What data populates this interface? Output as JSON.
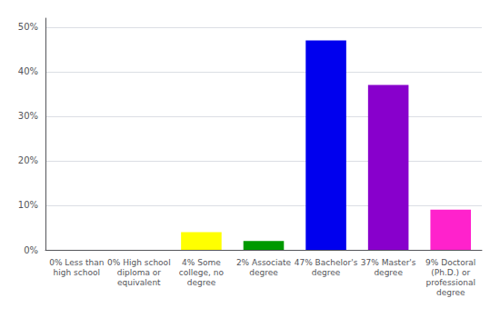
{
  "chart_data": {
    "type": "bar",
    "categories": [
      "0% Less than\nhigh school",
      "0% High school\ndiploma or\nequivalent",
      "4% Some\ncollege, no\ndegree",
      "2% Associate\ndegree",
      "47% Bachelor's\ndegree",
      "37% Master's\ndegree",
      "9% Doctoral\n(Ph.D.) or\nprofessional\ndegree"
    ],
    "values": [
      0,
      0,
      4,
      2,
      47,
      37,
      9
    ],
    "colors": [
      "#cc0000",
      "#ff6600",
      "#ffff00",
      "#009900",
      "#0000ee",
      "#8800cc",
      "#ff22cc"
    ],
    "ylim": [
      0,
      52
    ],
    "yticks": [
      {
        "value": 0,
        "label": "0%"
      },
      {
        "value": 10,
        "label": "10%"
      },
      {
        "value": 20,
        "label": "20%"
      },
      {
        "value": 30,
        "label": "30%"
      },
      {
        "value": 40,
        "label": "40%"
      },
      {
        "value": 50,
        "label": "50%"
      }
    ],
    "grid": true
  }
}
